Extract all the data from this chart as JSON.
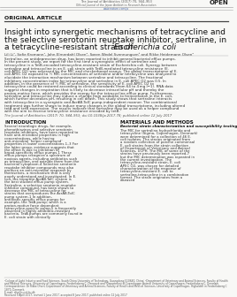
{
  "bg_color": "#f8f8f6",
  "header_journal": "The Journal of Antibiotics (2017) 70, 944–953",
  "header_official": "Official journal of the Japan Antibiotics Research Association",
  "header_url": "www.nature.com/ja",
  "header_open": "OPEN",
  "section_label": "ORIGINAL ARTICLE",
  "title_line1": "Insight into synergetic mechanisms of tetracycline and",
  "title_line2": "the selective serotonin reuptake inhibitor, sertraline, in",
  "title_line3_plain": "a tetracycline-resistant strain of ",
  "title_line3_italic": "Escherichia coli",
  "authors": "Lili Li¹, Sofie Kromann¹, John Elmerdahl Olsen², Søren Wedel Svennungsen³ and Rikke Heidemann Olsen²",
  "abstract_label": "abstract_body",
  "abstract_text": "Sertraline, an antidepression drug, has been reported to inhibit general bacterial efflux pumps. In the present study, we report for the first time a synergistic effect of sertraline and tetracycline in a TetB-encoded tetracycline-resistant strain of Escherichia coli. Synergy between sertraline and tetracycline in an E. coli strain with TetB-mediated tetracycline resistance (E. coli APEC O2) was assessed by the MIC and checkerboard assays. The global transcriptome of E. coli APEC O2 exposed to ½ MIC concentrations of sertraline and/or tetracycline was analyzed to elucidate the interaction mechanism between sertraline and tetracycline. The fractional inhibitory concentration index for tetracycline and sertraline in E. coli APEC O2 was 0.5. In addition, in the presence of ½ MIC of sertraline, the sensitivity of E. coli APEC O2 to tetracycline could be restored according to clinical standards (from 64 to 4 mg l−1). RNA data suggest changes in respiration that is likely to decrease intracellular pH and thereby the proton-motive force, which provides the energy for the tetracycline efflux pump. Furthermore, sertraline and tetracycline may induce a change from oxidation to fermentation in the E. coli, which further decreases pH, resulting in cell death. This study shows that sertraline interacts with tetracycline in a synergistic and AcrAB-TolC pump-independent manner. The combinational treatment was further shown to induce many changes in the global transcriptome, including altered tetA and tetB expression. The results indicate that sertraline may be used as a helper compound with the aim to reverse tetracycline resistance encoded by tetB.",
  "citation": "The Journal of Antibiotics (2017) 70, 944–953; doi:10.1038/ja.2017.78; published online 12 July 2017",
  "intro_header": "INTRODUCTION",
  "intro_text": "Several neurologic drugs, for example, phenothiazines and selective serotonin reuptake inhibitors, have been reported to have anti-microbial properties in high concentrations, while having anti-microbial ‘helper compound’ properties in lower concentrations.1–3 For the latter group, evidence suggests that the effect is due to inhibition of broad-specificity efflux pumps.1 These efflux pumps recognize a spectrum of noxious agents, including antibiotics such as tetracycline, and extrude them from the bacterial cytoplasm.4 Selective serotonin reuptake inhibitor compounds may also produce an anti-microbial response by themselves, a mechanism that is only poorly understood and investigated. In E. coli, the tripartite AcrAB-TolC system is the best studied efflux pump system. Sertraline, a selective serotonin reuptake inhibitor compound, has been shown to decrease the MIC of tetracycline for strains that overproduces the AcrAB-TolC pump system.1 In addition, antibiotic-specific efflux pumps for example, the TetA pump, which is a proton-motive force dependent tetracycline-specific pump,5 is frequently observed in highly antibiotic-resistant bacteria. TetA pumps are commonly found in E. coli strain with clinically",
  "methods_header": "MATERIALS AND METHODS",
  "methods_sub": "Bacterial strain characterization and susceptibility testing",
  "methods_text": "The MIC for sertraline hydrochloride and tetracycline (Sigma, Copenhagen, Denmark) were determined for a collection of 46 E. coli isolates. The strains originated from a random collection of porcine commensal E. coli strains from the strain collection of Department of Veterinary and Animal Sciences, UCPH. The MIC of some of the strains have previously been reported,7 but the MIC determination was repeated in the current investigation. The tetracycline-resistant strain, E. coli APEC O2, was chosen for detailed characterization of the response of tetracycline-resistant E. coli to sertraline-tetracycline in a combination format. The strain originates from a diseased",
  "intro_col2_text": "relevant tetracycline resistance,6 but how sertraline impact tet-encoded resistance remains to be investigated.\n    The aim of the present study was to investigate the effect of combined sertraline and tetracycline exposure to evaluate the ‘helper compound’ properties of sertraline against tet-encoded tetracycline resistance in E. coli. To elucidate the mechanism behind the synergy observed between sertraline and tetracycline, the global transcriptomic response of a tet-encoded tetracycline-resistant E. coli was further characterized.",
  "footnote1": "¹College of Light Industry and Food Sciences, South China University of Technology, Guangdong 510640, China; ²Department of Veterinary and Animal Sciences, Faculty of Health",
  "footnote2": "and Medical Sciences, University of Copenhagen, Frederiksberg C, Denmark and ³Department of Copenhagen Animal University of Copenhagen, Frederiksberg C, Denmark",
  "footnote3": "Correspondence: Dr Rikke Olsen, Department of Veterinary and Animal Sciences, Faculty of Health and Medical Sciences, University of Copenhagen, Higholden in Frederiksberg C",
  "footnote4": "1870, Denmark.",
  "footnote5": "E-mail: riho@sund.ku.dk",
  "footnote6": "Received 9 April 2017; revised 1 June 2017; accepted 8 June 2017; published online 12 July 2017"
}
